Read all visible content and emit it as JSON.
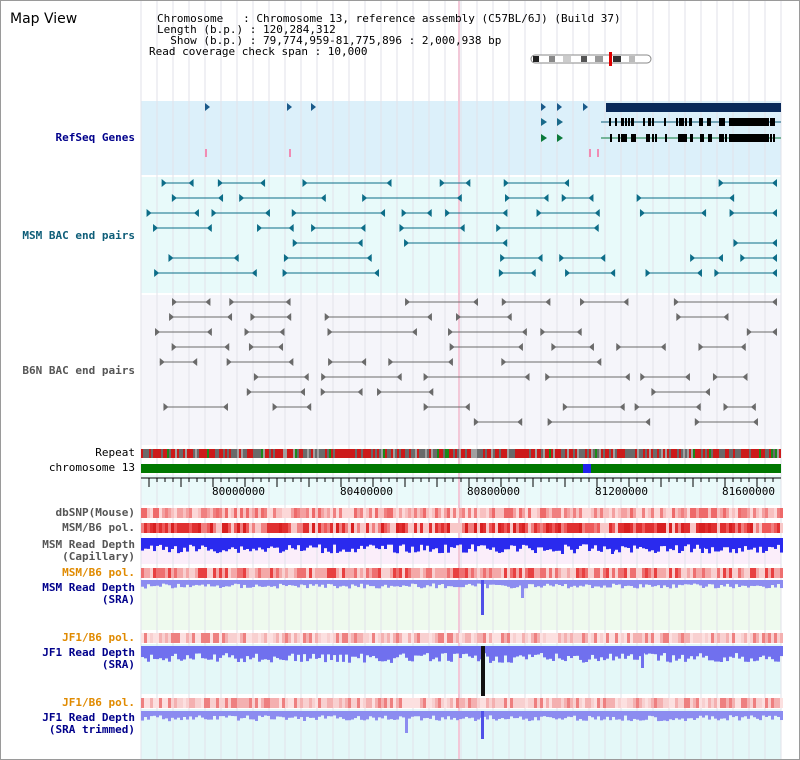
{
  "title": "Map View",
  "info": {
    "chromosome_label": "Chromosome   : Chromosome 13, reference assembly (C57BL/6J) (Build 37)",
    "length_label": "Length (b.p.) : 120,284,312",
    "show_label": "  Show (b.p.) : 79,774,959-81,775,896 : 2,000,938 bp",
    "span_label": "Read coverage check span : 10,000"
  },
  "tracks": {
    "refseq": "RefSeq Genes",
    "msm_bac": "MSM BAC end pairs",
    "b6n_bac": "B6N BAC end pairs",
    "repeat": "Repeat",
    "chromosome": "chromosome 13",
    "dbsnp": "dbSNP(Mouse)",
    "msm_b6_pol": "MSM/B6 pol.",
    "msm_depth_cap_1": "MSM Read Depth",
    "msm_depth_cap_2": "(Capillary)",
    "msm_b6_pol_2": "MSM/B6 pol.",
    "msm_depth_sra_1": "MSM Read Depth",
    "msm_depth_sra_2": "(SRA)",
    "jf1_b6_pol": "JF1/B6 pol.",
    "jf1_depth_sra_1": "JF1 Read Depth",
    "jf1_depth_sra_2": "(SRA)",
    "jf1_b6_pol_2": "JF1/B6 pol.",
    "jf1_depth_trim_1": "JF1 Read Depth",
    "jf1_depth_trim_2": "(SRA trimmed)"
  },
  "axis": {
    "ticks": [
      "80000000",
      "80400000",
      "80800000",
      "81200000",
      "81600000"
    ]
  },
  "colors": {
    "refseq_bg": "#dcf0fa",
    "msm_bg": "#e8fafa",
    "b6n_bg": "#f5f5fa",
    "chrom_green": "#007800",
    "depth_blue": "#2222ee",
    "pol_red": "#e03030"
  }
}
